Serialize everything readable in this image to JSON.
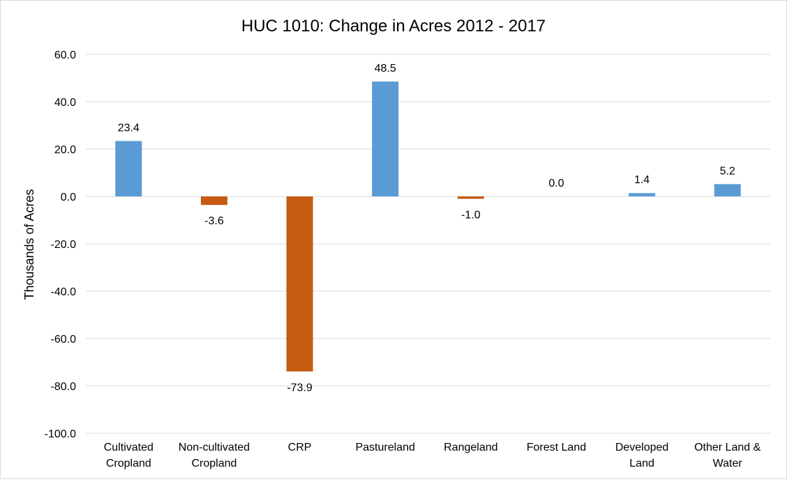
{
  "chart_data": {
    "type": "bar",
    "title": "HUC 1010: Change in Acres 2012 - 2017",
    "xlabel": "",
    "ylabel": "Thousands of Acres",
    "ylim": [
      -100,
      60
    ],
    "yticks": [
      60,
      40,
      20,
      0,
      -20,
      -40,
      -60,
      -80,
      -100
    ],
    "ytick_labels": [
      "60.0",
      "40.0",
      "20.0",
      "0.0",
      "-20.0",
      "-40.0",
      "-60.0",
      "-80.0",
      "-100.0"
    ],
    "grid": true,
    "legend": "none",
    "categories": [
      [
        "Cultivated",
        "Cropland"
      ],
      [
        "Non-cultivated",
        "Cropland"
      ],
      [
        "CRP"
      ],
      [
        "Pastureland"
      ],
      [
        "Rangeland"
      ],
      [
        "Forest Land"
      ],
      [
        "Developed",
        "Land"
      ],
      [
        "Other Land &",
        "Water"
      ]
    ],
    "values": [
      23.4,
      -3.6,
      -73.9,
      48.5,
      -1.0,
      0.0,
      1.4,
      5.2
    ],
    "value_labels": [
      "23.4",
      "-3.6",
      "-73.9",
      "48.5",
      "-1.0",
      "0.0",
      "1.4",
      "5.2"
    ],
    "colors": {
      "positive": "#5b9bd5",
      "negative": "#c55a11",
      "grid": "#d9d9d9",
      "border": "#d9d9d9"
    }
  }
}
